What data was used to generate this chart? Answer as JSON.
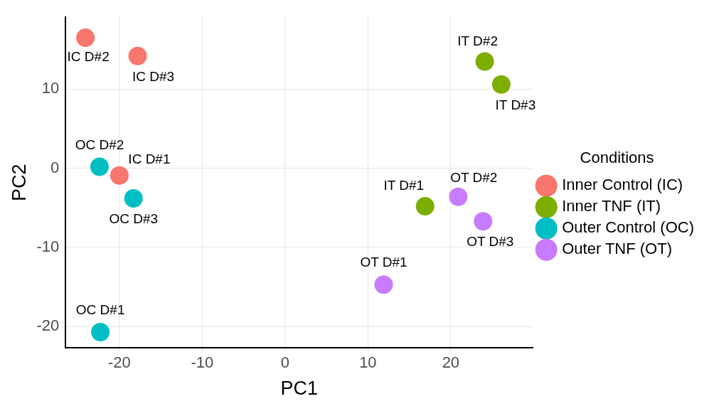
{
  "chart_data": {
    "type": "scatter",
    "xlabel": "PC1",
    "ylabel": "PC2",
    "legend_title": "Conditions",
    "legend": "right",
    "grid": true,
    "marker": "circle",
    "xlim": [
      -26.5,
      29.9
    ],
    "ylim": [
      -22.7,
      19.1
    ],
    "xticks": [
      -20,
      -10,
      0,
      10,
      20
    ],
    "yticks": [
      -20,
      -10,
      0,
      10
    ],
    "series": [
      {
        "name": "Inner Control (IC)",
        "color": "#f8766d",
        "x": [
          -20.0,
          -24.1,
          -17.8
        ],
        "values": [
          -0.9,
          16.5,
          14.2
        ]
      },
      {
        "name": "Inner TNF (IT)",
        "color": "#7cae00",
        "x": [
          16.9,
          24.1,
          26.1
        ],
        "values": [
          -4.8,
          13.5,
          10.6
        ]
      },
      {
        "name": "Outer Control (OC)",
        "color": "#00bfc4",
        "x": [
          -22.3,
          -22.4,
          -18.3
        ],
        "values": [
          -20.7,
          0.2,
          -3.8
        ]
      },
      {
        "name": "Outer TNF (OT)",
        "color": "#c77cff",
        "x": [
          11.9,
          20.9,
          23.9
        ],
        "values": [
          -14.7,
          -3.6,
          -6.7
        ]
      }
    ],
    "annotations": [
      {
        "text": "IC D#1",
        "x": -20.0,
        "y": -0.9
      },
      {
        "text": "IC D#2",
        "x": -24.1,
        "y": 16.5
      },
      {
        "text": "IC D#3",
        "x": -17.8,
        "y": 14.2
      },
      {
        "text": "IT D#1",
        "x": 16.9,
        "y": -4.8
      },
      {
        "text": "IT D#2",
        "x": 24.1,
        "y": 13.5
      },
      {
        "text": "IT D#3",
        "x": 26.1,
        "y": 10.6
      },
      {
        "text": "OC D#1",
        "x": -22.3,
        "y": -20.7
      },
      {
        "text": "OC D#2",
        "x": -22.4,
        "y": 0.2
      },
      {
        "text": "OC D#3",
        "x": -18.3,
        "y": -3.8
      },
      {
        "text": "OT D#1",
        "x": 11.9,
        "y": -14.7
      },
      {
        "text": "OT D#2",
        "x": 20.9,
        "y": -3.6
      },
      {
        "text": "OT D#3",
        "x": 23.9,
        "y": -6.7
      }
    ]
  }
}
